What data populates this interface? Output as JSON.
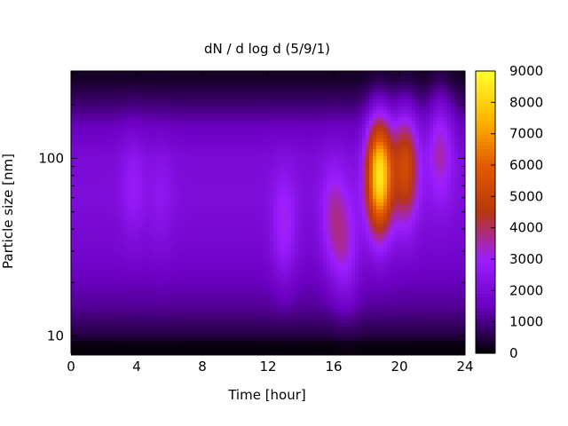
{
  "chart_data": {
    "type": "heatmap",
    "title": "dN / d log d (5/9/1)",
    "xlabel": "Time [hour]",
    "ylabel": "Particle size [nm]",
    "x_range": [
      0,
      24
    ],
    "x_ticks": [
      0,
      4,
      8,
      12,
      16,
      20,
      24
    ],
    "y_scale": "log",
    "y_range": [
      8,
      310
    ],
    "y_ticks": [
      10,
      100
    ],
    "colorbar": {
      "range": [
        0,
        9000
      ],
      "ticks": [
        0,
        1000,
        2000,
        3000,
        4000,
        5000,
        6000,
        7000,
        8000,
        9000
      ],
      "palette": [
        "#000000",
        "#6a00c0",
        "#9c1fff",
        "#b8360f",
        "#e35a00",
        "#ffb800",
        "#ffff30"
      ]
    },
    "baseline_by_size": [
      {
        "size_nm": 9,
        "value": 100
      },
      {
        "size_nm": 10,
        "value": 500
      },
      {
        "size_nm": 15,
        "value": 1200
      },
      {
        "size_nm": 30,
        "value": 1800
      },
      {
        "size_nm": 60,
        "value": 2100
      },
      {
        "size_nm": 100,
        "value": 2000
      },
      {
        "size_nm": 150,
        "value": 1500
      },
      {
        "size_nm": 200,
        "value": 900
      },
      {
        "size_nm": 280,
        "value": 300
      }
    ],
    "features": [
      {
        "time_h": 3.8,
        "size_nm": 70,
        "value": 2800
      },
      {
        "time_h": 5.5,
        "size_nm": 60,
        "value": 2600
      },
      {
        "time_h": 13.0,
        "size_nm": 40,
        "value": 3100
      },
      {
        "time_h": 16.0,
        "size_nm": 45,
        "value": 3400
      },
      {
        "time_h": 16.8,
        "size_nm": 30,
        "value": 3000
      },
      {
        "time_h": 18.8,
        "size_nm": 80,
        "value": 8500
      },
      {
        "time_h": 20.4,
        "size_nm": 90,
        "value": 5300
      },
      {
        "time_h": 22.5,
        "size_nm": 120,
        "value": 3400
      }
    ]
  }
}
